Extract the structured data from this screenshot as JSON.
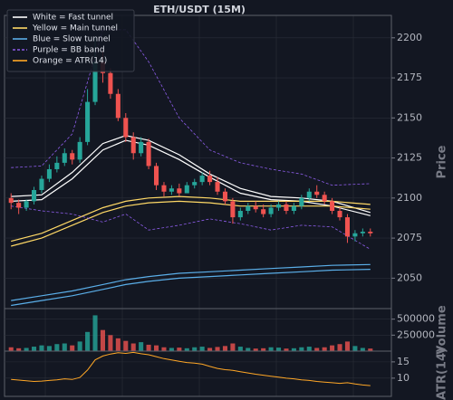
{
  "chart_data": [
    {
      "type": "candlestick",
      "title": "ETH/USDT (15M)",
      "ylabel": "Price",
      "up_color": "#26a69a",
      "down_color": "#ef5350",
      "open": [
        2100,
        2097,
        2094,
        2098,
        2105,
        2112,
        2118,
        2122,
        2128,
        2124,
        2135,
        2160,
        2185,
        2178,
        2165,
        2150,
        2138,
        2128,
        2135,
        2120,
        2108,
        2104,
        2106,
        2103,
        2108,
        2110,
        2114,
        2110,
        2104,
        2098,
        2088,
        2092,
        2095,
        2093,
        2090,
        2094,
        2096,
        2092,
        2095,
        2100,
        2104,
        2102,
        2098,
        2092,
        2088,
        2076,
        2078,
        2079
      ],
      "high": [
        2103,
        2099,
        2099,
        2107,
        2114,
        2121,
        2126,
        2131,
        2130,
        2138,
        2168,
        2200,
        2192,
        2181,
        2168,
        2153,
        2141,
        2138,
        2137,
        2122,
        2110,
        2108,
        2109,
        2110,
        2112,
        2116,
        2117,
        2113,
        2106,
        2100,
        2094,
        2097,
        2098,
        2096,
        2096,
        2098,
        2098,
        2097,
        2102,
        2106,
        2108,
        2104,
        2100,
        2094,
        2090,
        2080,
        2081,
        2081
      ],
      "low": [
        2093,
        2090,
        2092,
        2096,
        2103,
        2110,
        2116,
        2120,
        2121,
        2122,
        2133,
        2158,
        2172,
        2162,
        2148,
        2135,
        2124,
        2126,
        2118,
        2105,
        2101,
        2102,
        2101,
        2103,
        2106,
        2108,
        2108,
        2102,
        2096,
        2084,
        2086,
        2090,
        2091,
        2088,
        2088,
        2092,
        2090,
        2090,
        2093,
        2098,
        2100,
        2096,
        2090,
        2086,
        2072,
        2073,
        2076,
        2076
      ],
      "close": [
        2097,
        2094,
        2098,
        2105,
        2112,
        2118,
        2122,
        2128,
        2124,
        2135,
        2160,
        2185,
        2178,
        2165,
        2150,
        2138,
        2128,
        2135,
        2120,
        2108,
        2104,
        2106,
        2103,
        2108,
        2110,
        2114,
        2110,
        2104,
        2098,
        2088,
        2092,
        2095,
        2093,
        2090,
        2094,
        2096,
        2092,
        2095,
        2100,
        2104,
        2102,
        2098,
        2092,
        2088,
        2076,
        2078,
        2079,
        2078
      ],
      "series": [
        {
          "name": "White = Fast tunnel",
          "color": "#ffffff",
          "dashed": false,
          "lines": [
            {
              "x": [
                0,
                4,
                8,
                12,
                15,
                18,
                22,
                26,
                30,
                34,
                38,
                42,
                47
              ],
              "values": [
                2101,
                2102,
                2116,
                2134,
                2139,
                2136,
                2127,
                2115,
                2106,
                2101,
                2100,
                2098,
                2091
              ]
            },
            {
              "x": [
                0,
                4,
                8,
                12,
                15,
                18,
                22,
                26,
                30,
                34,
                38,
                42,
                47
              ],
              "values": [
                2098,
                2099,
                2112,
                2130,
                2136,
                2133,
                2124,
                2113,
                2103,
                2099,
                2098,
                2095,
                2089
              ]
            }
          ]
        },
        {
          "name": "Yellow = Main tunnel",
          "color": "#ffd966",
          "dashed": false,
          "lines": [
            {
              "x": [
                0,
                4,
                8,
                12,
                15,
                18,
                22,
                26,
                30,
                34,
                38,
                42,
                47
              ],
              "values": [
                2073,
                2078,
                2086,
                2094,
                2098,
                2100,
                2101,
                2100,
                2098,
                2098,
                2098,
                2098,
                2096
              ]
            },
            {
              "x": [
                0,
                4,
                8,
                12,
                15,
                18,
                22,
                26,
                30,
                34,
                38,
                42,
                47
              ],
              "values": [
                2070,
                2075,
                2083,
                2091,
                2095,
                2097,
                2098,
                2097,
                2095,
                2095,
                2095,
                2095,
                2093
              ]
            }
          ]
        },
        {
          "name": "Blue = Slow tunnel",
          "color": "#5aaee8",
          "dashed": false,
          "lines": [
            {
              "x": [
                0,
                4,
                8,
                12,
                15,
                18,
                22,
                26,
                30,
                34,
                38,
                42,
                47
              ],
              "values": [
                2036,
                2039,
                2042,
                2046,
                2049,
                2051,
                2053,
                2054,
                2055,
                2056,
                2057,
                2058,
                2058.5
              ]
            },
            {
              "x": [
                0,
                4,
                8,
                12,
                15,
                18,
                22,
                26,
                30,
                34,
                38,
                42,
                47
              ],
              "values": [
                2033,
                2036,
                2039,
                2043,
                2046,
                2048,
                2050,
                2051,
                2052,
                2053,
                2054,
                2055,
                2055.5
              ]
            }
          ]
        },
        {
          "name": "Purple = BB band",
          "color": "#8c5ce8",
          "dashed": true,
          "lines": [
            {
              "x": [
                0,
                4,
                8,
                12,
                15,
                18,
                22,
                26,
                30,
                34,
                38,
                42,
                47
              ],
              "values": [
                2119,
                2120,
                2140,
                2205,
                2205,
                2185,
                2150,
                2130,
                2122,
                2118,
                2115,
                2108,
                2109
              ]
            },
            {
              "x": [
                0,
                4,
                8,
                12,
                15,
                18,
                22,
                26,
                30,
                34,
                38,
                42,
                47
              ],
              "values": [
                2095,
                2092,
                2090,
                2085,
                2090,
                2080,
                2083,
                2087,
                2084,
                2080,
                2083,
                2082,
                2068
              ]
            }
          ]
        }
      ],
      "ylim": [
        2031,
        2214
      ],
      "yticks": [
        2050,
        2075,
        2100,
        2125,
        2150,
        2175,
        2200
      ],
      "grid": true
    },
    {
      "type": "bar",
      "ylabel": "Volume",
      "values": [
        60000,
        45000,
        50000,
        70000,
        90000,
        80000,
        110000,
        120000,
        90000,
        150000,
        300000,
        560000,
        330000,
        250000,
        200000,
        160000,
        120000,
        140000,
        100000,
        90000,
        60000,
        50000,
        55000,
        45000,
        60000,
        70000,
        50000,
        65000,
        80000,
        120000,
        70000,
        50000,
        40000,
        45000,
        60000,
        55000,
        40000,
        45000,
        60000,
        70000,
        50000,
        60000,
        90000,
        110000,
        150000,
        80000,
        50000,
        40000
      ],
      "ylim": [
        0,
        665000
      ],
      "yticks": [
        250000,
        500000
      ],
      "grid": true
    },
    {
      "type": "line",
      "ylabel": "ATR(14)",
      "series": [
        {
          "name": "Orange = ATR(14)",
          "color": "#ffa726",
          "values": [
            9.6,
            9.4,
            9.2,
            9.0,
            9.1,
            9.3,
            9.5,
            9.8,
            9.6,
            10.2,
            12.5,
            15.6,
            16.8,
            17.4,
            17.8,
            17.6,
            17.9,
            17.5,
            17.2,
            16.6,
            16.0,
            15.6,
            15.2,
            14.8,
            14.6,
            14.3,
            13.6,
            13.0,
            12.6,
            12.4,
            12.0,
            11.6,
            11.2,
            10.9,
            10.6,
            10.3,
            10.0,
            9.8,
            9.5,
            9.3,
            9.0,
            8.8,
            8.6,
            8.4,
            8.6,
            8.2,
            7.9,
            7.7
          ]
        }
      ],
      "ylim": [
        4.4,
        18.3
      ],
      "yticks": [
        10,
        15
      ],
      "grid": true
    }
  ]
}
